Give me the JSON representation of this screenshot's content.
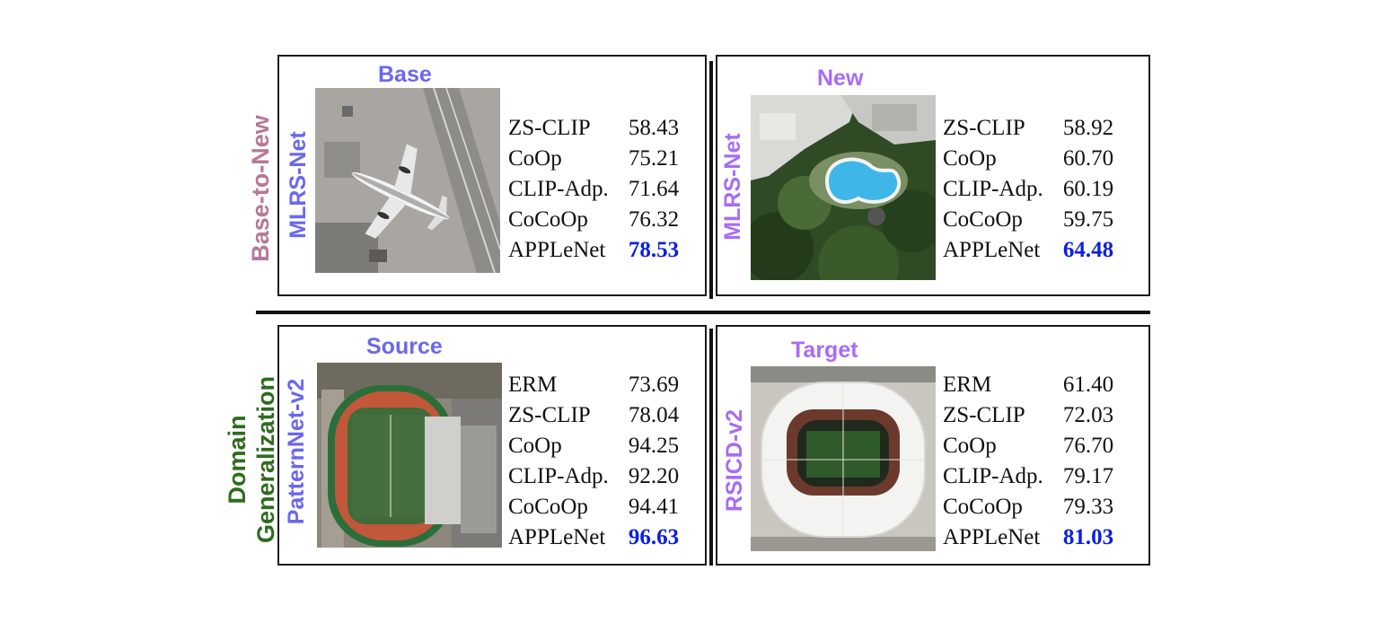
{
  "colors": {
    "blue_label": "#6a67f0",
    "purple_label": "#a86cf5",
    "mauve_group": "#b6789a",
    "green_group": "#2f6b1f",
    "best_value": "#0b1ee6"
  },
  "groups": {
    "base_to_new": "Base-to-New",
    "domain_line1": "Domain",
    "domain_line2": "Generalization"
  },
  "panels": {
    "base": {
      "header": "Base",
      "dataset": "MLRS-Net",
      "image_icon": "airplane-aerial-photo",
      "rows": [
        {
          "method": "ZS-CLIP",
          "value": "58.43"
        },
        {
          "method": "CoOp",
          "value": "75.21"
        },
        {
          "method": "CLIP-Adp.",
          "value": "71.64"
        },
        {
          "method": "CoCoOp",
          "value": "76.32"
        },
        {
          "method": "APPLeNet",
          "value": "78.53"
        }
      ]
    },
    "new": {
      "header": "New",
      "dataset": "MLRS-Net",
      "image_icon": "swimming-pool-aerial-photo",
      "rows": [
        {
          "method": "ZS-CLIP",
          "value": "58.92"
        },
        {
          "method": "CoOp",
          "value": "60.70"
        },
        {
          "method": "CLIP-Adp.",
          "value": "60.19"
        },
        {
          "method": "CoCoOp",
          "value": "59.75"
        },
        {
          "method": "APPLeNet",
          "value": "64.48"
        }
      ]
    },
    "source": {
      "header": "Source",
      "dataset": "PatternNet-v2",
      "image_icon": "running-track-aerial-photo",
      "rows": [
        {
          "method": "ERM",
          "value": "73.69"
        },
        {
          "method": "ZS-CLIP",
          "value": "78.04"
        },
        {
          "method": "CoOp",
          "value": "94.25"
        },
        {
          "method": "CLIP-Adp.",
          "value": "92.20"
        },
        {
          "method": "CoCoOp",
          "value": "94.41"
        },
        {
          "method": "APPLeNet",
          "value": "96.63"
        }
      ]
    },
    "target": {
      "header": "Target",
      "dataset": "RSICD-v2",
      "image_icon": "stadium-aerial-photo",
      "rows": [
        {
          "method": "ERM",
          "value": "61.40"
        },
        {
          "method": "ZS-CLIP",
          "value": "72.03"
        },
        {
          "method": "CoOp",
          "value": "76.70"
        },
        {
          "method": "CLIP-Adp.",
          "value": "79.17"
        },
        {
          "method": "CoCoOp",
          "value": "79.33"
        },
        {
          "method": "APPLeNet",
          "value": "81.03"
        }
      ]
    }
  }
}
